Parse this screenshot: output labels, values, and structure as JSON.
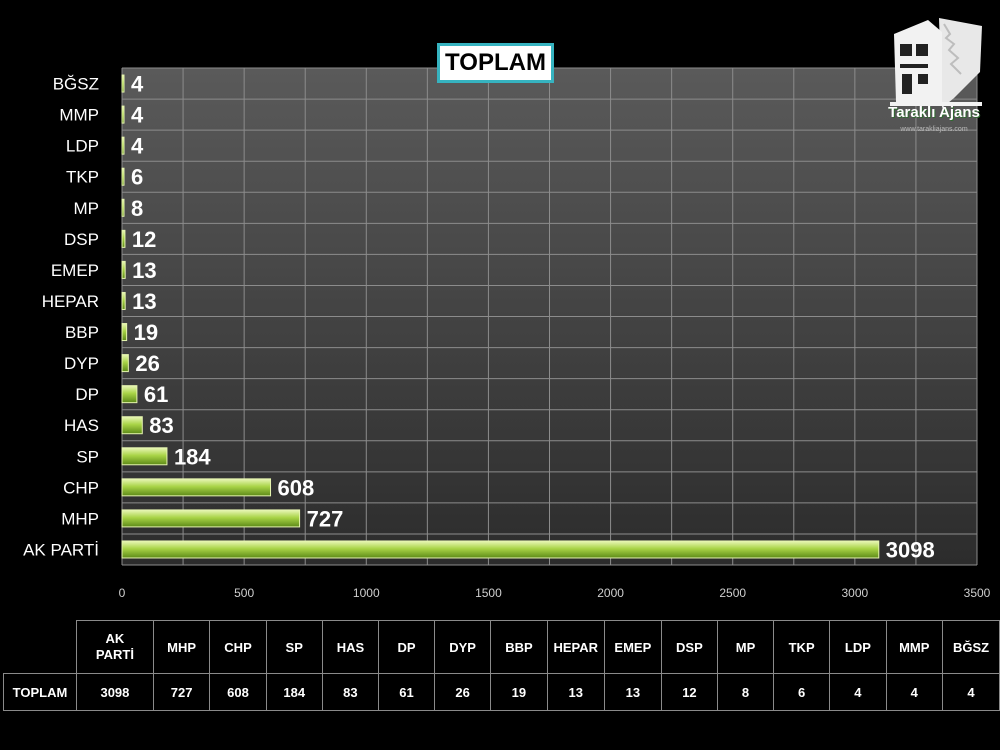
{
  "logo": {
    "name": "Taraklı Ajans",
    "url": "www.tarakliajans.com"
  },
  "chart_data": {
    "type": "bar",
    "orientation": "horizontal",
    "title": "TOPLAM",
    "categories": [
      "BĞSZ",
      "MMP",
      "LDP",
      "TKP",
      "MP",
      "DSP",
      "EMEP",
      "HEPAR",
      "BBP",
      "DYP",
      "DP",
      "HAS",
      "SP",
      "CHP",
      "MHP",
      "AK PARTİ"
    ],
    "values": [
      4,
      4,
      4,
      6,
      8,
      12,
      13,
      13,
      19,
      26,
      61,
      83,
      184,
      608,
      727,
      3098
    ],
    "xlim": [
      0,
      3500
    ],
    "xticks": [
      0,
      500,
      1000,
      1500,
      2000,
      2500,
      3000,
      3500
    ],
    "grid": true,
    "bar_color": "#9ccc3c",
    "legend": "none"
  },
  "table": {
    "row_label": "TOPLAM",
    "headers": [
      "AK PARTİ",
      "MHP",
      "CHP",
      "SP",
      "HAS",
      "DP",
      "DYP",
      "BBP",
      "HEPAR",
      "EMEP",
      "DSP",
      "MP",
      "TKP",
      "LDP",
      "MMP",
      "BĞSZ"
    ],
    "values": [
      "3098",
      "727",
      "608",
      "184",
      "83",
      "61",
      "26",
      "19",
      "13",
      "13",
      "12",
      "8",
      "6",
      "4",
      "4",
      "4"
    ]
  }
}
